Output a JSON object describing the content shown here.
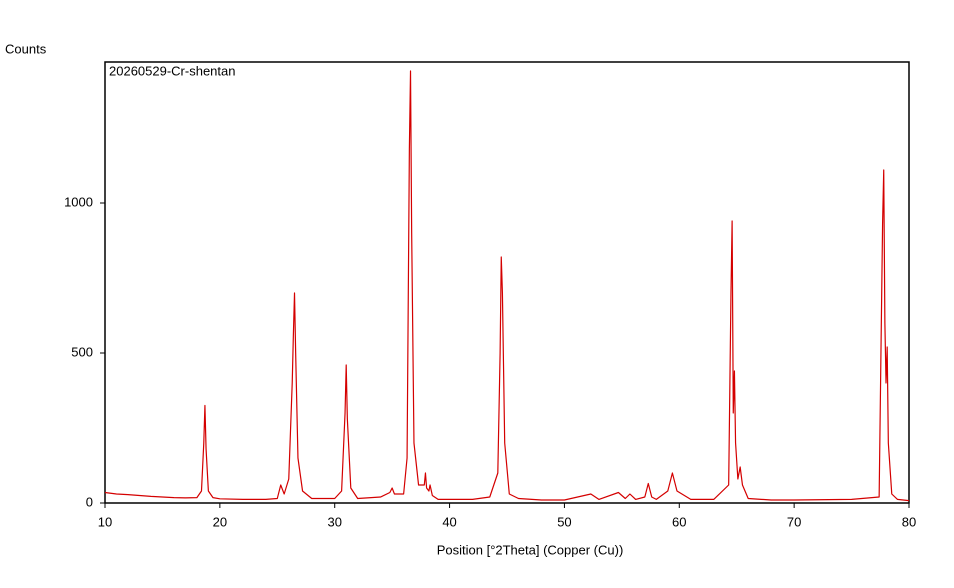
{
  "chart_data": {
    "type": "line",
    "y_label": "Counts",
    "x_label": "Position [°2Theta] (Copper (Cu))",
    "x": [
      10,
      11,
      12,
      13,
      14,
      15,
      16,
      17,
      18,
      18.4,
      18.6,
      18.7,
      18.8,
      19.0,
      19.4,
      20,
      22,
      24,
      25.0,
      25.3,
      25.6,
      26.0,
      26.3,
      26.4,
      26.5,
      26.6,
      26.8,
      27.2,
      28,
      30,
      30.6,
      30.9,
      31.0,
      31.1,
      31.4,
      32,
      34,
      34.8,
      35.0,
      35.2,
      36.0,
      36.3,
      36.5,
      36.6,
      36.7,
      36.9,
      37.3,
      37.8,
      37.9,
      38.0,
      38.2,
      38.3,
      38.5,
      39,
      42,
      43.5,
      44.2,
      44.4,
      44.5,
      44.6,
      44.8,
      45.2,
      46,
      48,
      50,
      52.3,
      53,
      54.7,
      55.3,
      55.7,
      56.2,
      57.0,
      57.3,
      57.6,
      58,
      59.0,
      59.4,
      59.8,
      61,
      63,
      64.3,
      64.5,
      64.6,
      64.7,
      64.8,
      64.9,
      65.1,
      65.3,
      65.5,
      66,
      68,
      70,
      75,
      77.4,
      77.7,
      77.8,
      77.9,
      78.0,
      78.1,
      78.2,
      78.5,
      79,
      80
    ],
    "series": [
      {
        "name": "20260529-Cr-shentan",
        "color": "#d40000",
        "values": [
          35,
          30,
          28,
          25,
          22,
          20,
          18,
          17,
          18,
          40,
          200,
          325,
          180,
          40,
          18,
          14,
          12,
          12,
          15,
          60,
          30,
          80,
          400,
          560,
          700,
          500,
          150,
          40,
          15,
          15,
          40,
          300,
          460,
          280,
          50,
          15,
          20,
          35,
          50,
          30,
          30,
          150,
          1180,
          1440,
          900,
          200,
          60,
          60,
          100,
          50,
          40,
          60,
          25,
          12,
          12,
          20,
          100,
          500,
          820,
          700,
          200,
          30,
          15,
          10,
          10,
          30,
          12,
          35,
          15,
          30,
          12,
          20,
          65,
          20,
          12,
          40,
          100,
          40,
          12,
          12,
          60,
          700,
          940,
          300,
          440,
          200,
          80,
          120,
          60,
          15,
          10,
          10,
          12,
          20,
          930,
          1110,
          600,
          400,
          520,
          200,
          30,
          12,
          8
        ]
      }
    ],
    "xlim": [
      10,
      80
    ],
    "xticks": [
      10,
      20,
      30,
      40,
      50,
      60,
      70,
      80
    ],
    "ylim": [
      0,
      1470
    ],
    "yticks": [
      0,
      500,
      1000
    ]
  }
}
